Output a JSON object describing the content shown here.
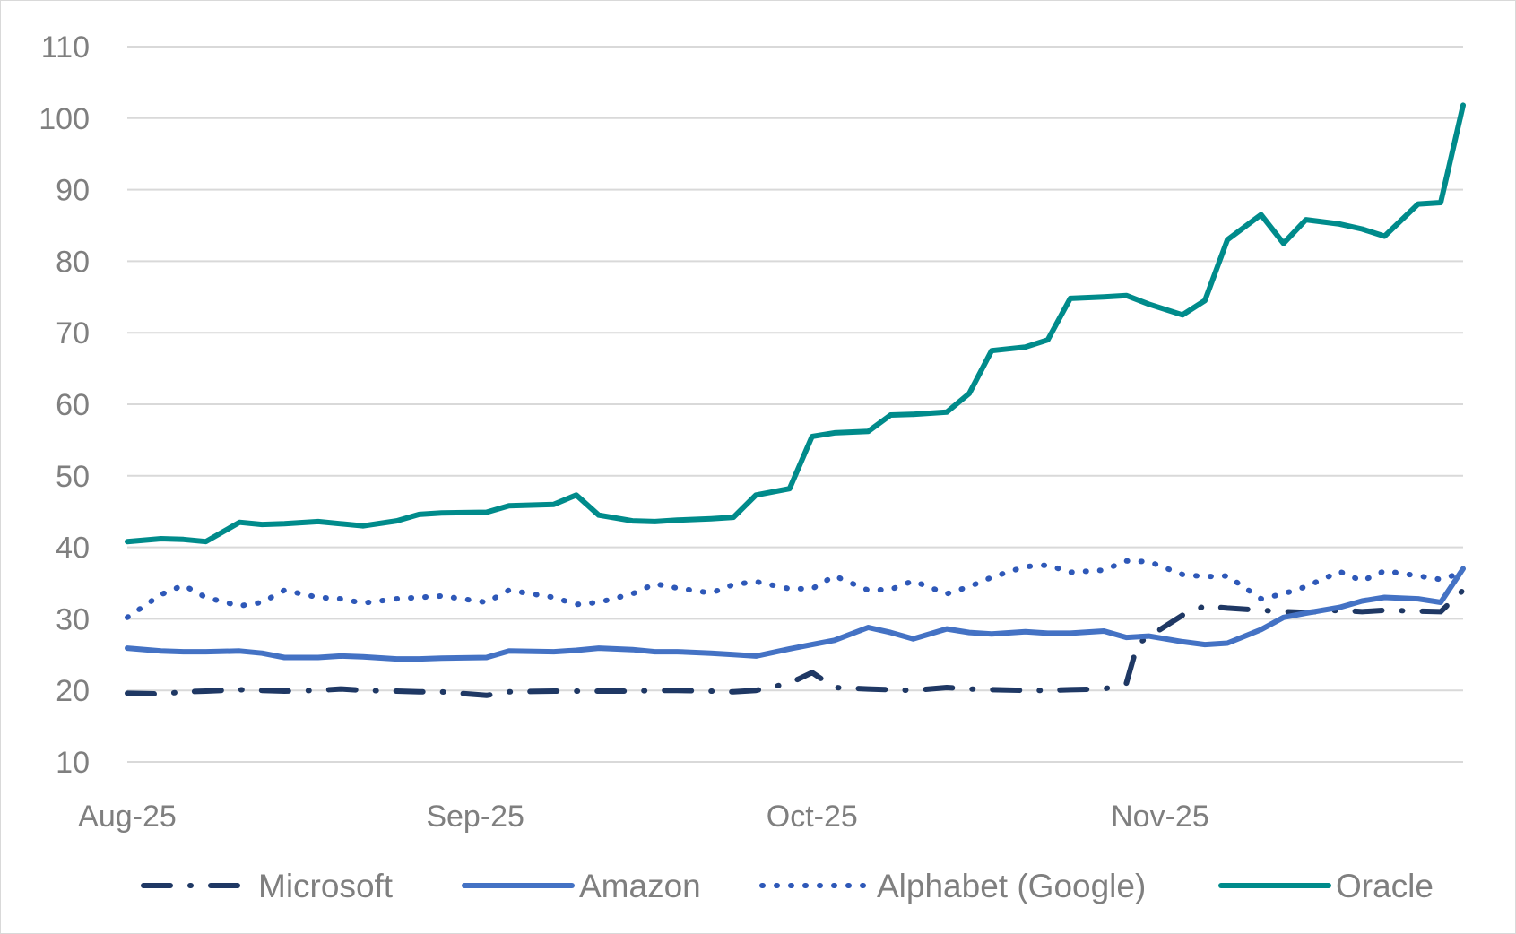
{
  "chart_data": {
    "type": "line",
    "title": "",
    "xlabel": "",
    "ylabel": "",
    "ylim": [
      10,
      110
    ],
    "yticks": [
      10,
      20,
      30,
      40,
      50,
      60,
      70,
      80,
      90,
      100,
      110
    ],
    "grid": true,
    "legend_position": "bottom",
    "x_range": [
      "2025-08-01",
      "2025-11-28"
    ],
    "x_tick_dates": [
      "2025-08-01",
      "2025-09-01",
      "2025-10-01",
      "2025-11-01"
    ],
    "x_tick_labels": [
      "Aug-25",
      "Sep-25",
      "Oct-25",
      "Nov-25"
    ],
    "series": [
      {
        "name": "Microsoft",
        "color": "#1f3864",
        "line_style": "dash-dot",
        "points": [
          [
            "2025-08-01",
            19.6
          ],
          [
            "2025-08-04",
            19.5
          ],
          [
            "2025-08-06",
            19.8
          ],
          [
            "2025-08-08",
            19.9
          ],
          [
            "2025-08-11",
            20.1
          ],
          [
            "2025-08-13",
            20.0
          ],
          [
            "2025-08-15",
            19.9
          ],
          [
            "2025-08-18",
            20.0
          ],
          [
            "2025-08-20",
            20.2
          ],
          [
            "2025-08-22",
            20.0
          ],
          [
            "2025-08-25",
            19.9
          ],
          [
            "2025-08-27",
            19.8
          ],
          [
            "2025-08-29",
            19.8
          ],
          [
            "2025-09-02",
            19.3
          ],
          [
            "2025-09-04",
            19.8
          ],
          [
            "2025-09-08",
            19.9
          ],
          [
            "2025-09-10",
            19.9
          ],
          [
            "2025-09-12",
            19.9
          ],
          [
            "2025-09-15",
            19.9
          ],
          [
            "2025-09-17",
            20.0
          ],
          [
            "2025-09-19",
            20.0
          ],
          [
            "2025-09-22",
            19.9
          ],
          [
            "2025-09-24",
            19.8
          ],
          [
            "2025-09-26",
            20.0
          ],
          [
            "2025-09-29",
            21.0
          ],
          [
            "2025-10-01",
            22.5
          ],
          [
            "2025-10-03",
            20.4
          ],
          [
            "2025-10-06",
            20.2
          ],
          [
            "2025-10-08",
            20.1
          ],
          [
            "2025-10-10",
            20.0
          ],
          [
            "2025-10-13",
            20.4
          ],
          [
            "2025-10-15",
            20.2
          ],
          [
            "2025-10-17",
            20.1
          ],
          [
            "2025-10-20",
            20.0
          ],
          [
            "2025-10-22",
            20.0
          ],
          [
            "2025-10-24",
            20.1
          ],
          [
            "2025-10-27",
            20.2
          ],
          [
            "2025-10-29",
            21.0
          ],
          [
            "2025-10-30",
            26.5
          ],
          [
            "2025-11-03",
            30.5
          ],
          [
            "2025-11-05",
            31.8
          ],
          [
            "2025-11-07",
            31.5
          ],
          [
            "2025-11-10",
            31.2
          ],
          [
            "2025-11-12",
            31.0
          ],
          [
            "2025-11-14",
            30.9
          ],
          [
            "2025-11-17",
            31.2
          ],
          [
            "2025-11-19",
            31.0
          ],
          [
            "2025-11-21",
            31.2
          ],
          [
            "2025-11-26",
            31.0
          ],
          [
            "2025-11-28",
            34.0
          ]
        ]
      },
      {
        "name": "Amazon",
        "color": "#4472c4",
        "line_style": "solid",
        "points": [
          [
            "2025-08-01",
            25.9
          ],
          [
            "2025-08-04",
            25.5
          ],
          [
            "2025-08-06",
            25.4
          ],
          [
            "2025-08-08",
            25.4
          ],
          [
            "2025-08-11",
            25.5
          ],
          [
            "2025-08-13",
            25.2
          ],
          [
            "2025-08-15",
            24.6
          ],
          [
            "2025-08-18",
            24.6
          ],
          [
            "2025-08-20",
            24.8
          ],
          [
            "2025-08-22",
            24.7
          ],
          [
            "2025-08-25",
            24.4
          ],
          [
            "2025-08-27",
            24.4
          ],
          [
            "2025-08-29",
            24.5
          ],
          [
            "2025-09-02",
            24.6
          ],
          [
            "2025-09-04",
            25.5
          ],
          [
            "2025-09-08",
            25.4
          ],
          [
            "2025-09-10",
            25.6
          ],
          [
            "2025-09-12",
            25.9
          ],
          [
            "2025-09-15",
            25.7
          ],
          [
            "2025-09-17",
            25.4
          ],
          [
            "2025-09-19",
            25.4
          ],
          [
            "2025-09-22",
            25.2
          ],
          [
            "2025-09-24",
            25.0
          ],
          [
            "2025-09-26",
            24.8
          ],
          [
            "2025-09-29",
            25.8
          ],
          [
            "2025-10-01",
            26.4
          ],
          [
            "2025-10-03",
            27.0
          ],
          [
            "2025-10-06",
            28.8
          ],
          [
            "2025-10-08",
            28.1
          ],
          [
            "2025-10-10",
            27.2
          ],
          [
            "2025-10-13",
            28.6
          ],
          [
            "2025-10-15",
            28.1
          ],
          [
            "2025-10-17",
            27.9
          ],
          [
            "2025-10-20",
            28.2
          ],
          [
            "2025-10-22",
            28.0
          ],
          [
            "2025-10-24",
            28.0
          ],
          [
            "2025-10-27",
            28.3
          ],
          [
            "2025-10-29",
            27.4
          ],
          [
            "2025-10-31",
            27.6
          ],
          [
            "2025-11-03",
            26.8
          ],
          [
            "2025-11-05",
            26.4
          ],
          [
            "2025-11-07",
            26.6
          ],
          [
            "2025-11-10",
            28.5
          ],
          [
            "2025-11-12",
            30.2
          ],
          [
            "2025-11-14",
            30.8
          ],
          [
            "2025-11-17",
            31.6
          ],
          [
            "2025-11-19",
            32.5
          ],
          [
            "2025-11-21",
            33.0
          ],
          [
            "2025-11-24",
            32.8
          ],
          [
            "2025-11-26",
            32.3
          ],
          [
            "2025-11-28",
            37.0
          ]
        ]
      },
      {
        "name": "Alphabet (Google)",
        "color": "#2e58b8",
        "line_style": "dotted",
        "points": [
          [
            "2025-08-01",
            30.2
          ],
          [
            "2025-08-04",
            33.4
          ],
          [
            "2025-08-06",
            34.7
          ],
          [
            "2025-08-08",
            33.0
          ],
          [
            "2025-08-11",
            31.8
          ],
          [
            "2025-08-13",
            32.3
          ],
          [
            "2025-08-15",
            34.0
          ],
          [
            "2025-08-18",
            33.0
          ],
          [
            "2025-08-20",
            32.8
          ],
          [
            "2025-08-22",
            32.2
          ],
          [
            "2025-08-25",
            32.8
          ],
          [
            "2025-08-27",
            33.0
          ],
          [
            "2025-08-29",
            33.2
          ],
          [
            "2025-09-02",
            32.3
          ],
          [
            "2025-09-04",
            34.0
          ],
          [
            "2025-09-08",
            33.0
          ],
          [
            "2025-09-10",
            32.0
          ],
          [
            "2025-09-12",
            32.3
          ],
          [
            "2025-09-15",
            33.5
          ],
          [
            "2025-09-17",
            34.9
          ],
          [
            "2025-09-19",
            34.3
          ],
          [
            "2025-09-22",
            33.6
          ],
          [
            "2025-09-24",
            34.8
          ],
          [
            "2025-09-26",
            35.2
          ],
          [
            "2025-09-29",
            34.2
          ],
          [
            "2025-10-01",
            34.2
          ],
          [
            "2025-10-03",
            36.0
          ],
          [
            "2025-10-06",
            34.0
          ],
          [
            "2025-10-08",
            34.1
          ],
          [
            "2025-10-10",
            35.3
          ],
          [
            "2025-10-13",
            33.5
          ],
          [
            "2025-10-15",
            34.5
          ],
          [
            "2025-10-17",
            35.8
          ],
          [
            "2025-10-20",
            37.3
          ],
          [
            "2025-10-22",
            37.5
          ],
          [
            "2025-10-24",
            36.5
          ],
          [
            "2025-10-27",
            36.8
          ],
          [
            "2025-10-29",
            38.1
          ],
          [
            "2025-10-31",
            38.0
          ],
          [
            "2025-11-03",
            36.2
          ],
          [
            "2025-11-05",
            35.9
          ],
          [
            "2025-11-07",
            36.0
          ],
          [
            "2025-11-10",
            32.8
          ],
          [
            "2025-11-12",
            33.5
          ],
          [
            "2025-11-14",
            34.5
          ],
          [
            "2025-11-17",
            36.6
          ],
          [
            "2025-11-19",
            35.3
          ],
          [
            "2025-11-21",
            36.7
          ],
          [
            "2025-11-24",
            36.0
          ],
          [
            "2025-11-26",
            35.5
          ],
          [
            "2025-11-28",
            36.5
          ]
        ]
      },
      {
        "name": "Oracle",
        "color": "#008b8b",
        "line_style": "solid",
        "points": [
          [
            "2025-08-01",
            40.8
          ],
          [
            "2025-08-04",
            41.2
          ],
          [
            "2025-08-06",
            41.1
          ],
          [
            "2025-08-08",
            40.8
          ],
          [
            "2025-08-11",
            43.5
          ],
          [
            "2025-08-13",
            43.2
          ],
          [
            "2025-08-15",
            43.3
          ],
          [
            "2025-08-18",
            43.6
          ],
          [
            "2025-08-20",
            43.3
          ],
          [
            "2025-08-22",
            43.0
          ],
          [
            "2025-08-25",
            43.7
          ],
          [
            "2025-08-27",
            44.6
          ],
          [
            "2025-08-29",
            44.8
          ],
          [
            "2025-09-02",
            44.9
          ],
          [
            "2025-09-04",
            45.8
          ],
          [
            "2025-09-08",
            46.0
          ],
          [
            "2025-09-10",
            47.3
          ],
          [
            "2025-09-12",
            44.5
          ],
          [
            "2025-09-15",
            43.7
          ],
          [
            "2025-09-17",
            43.6
          ],
          [
            "2025-09-19",
            43.8
          ],
          [
            "2025-09-22",
            44.0
          ],
          [
            "2025-09-24",
            44.2
          ],
          [
            "2025-09-26",
            47.3
          ],
          [
            "2025-09-29",
            48.2
          ],
          [
            "2025-10-01",
            55.5
          ],
          [
            "2025-10-03",
            56.0
          ],
          [
            "2025-10-06",
            56.2
          ],
          [
            "2025-10-08",
            58.5
          ],
          [
            "2025-10-10",
            58.6
          ],
          [
            "2025-10-13",
            58.9
          ],
          [
            "2025-10-15",
            61.5
          ],
          [
            "2025-10-17",
            67.5
          ],
          [
            "2025-10-20",
            68.0
          ],
          [
            "2025-10-22",
            69.0
          ],
          [
            "2025-10-24",
            74.8
          ],
          [
            "2025-10-27",
            75.0
          ],
          [
            "2025-10-29",
            75.2
          ],
          [
            "2025-10-31",
            74.0
          ],
          [
            "2025-11-03",
            72.5
          ],
          [
            "2025-11-05",
            74.5
          ],
          [
            "2025-11-07",
            83.0
          ],
          [
            "2025-11-10",
            86.5
          ],
          [
            "2025-11-12",
            82.5
          ],
          [
            "2025-11-14",
            85.8
          ],
          [
            "2025-11-17",
            85.2
          ],
          [
            "2025-11-19",
            84.5
          ],
          [
            "2025-11-21",
            83.5
          ],
          [
            "2025-11-24",
            88.0
          ],
          [
            "2025-11-26",
            88.2
          ],
          [
            "2025-11-28",
            101.8
          ]
        ]
      }
    ]
  }
}
